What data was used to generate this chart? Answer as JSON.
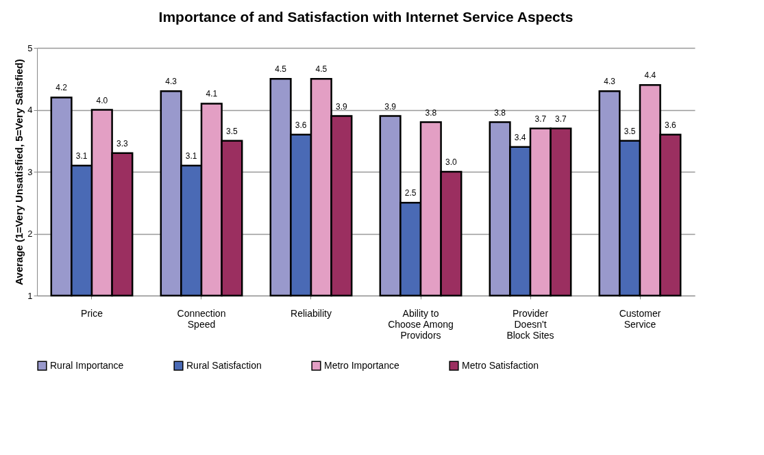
{
  "chart_data": {
    "type": "bar",
    "title": "Importance of and Satisfaction with Internet Service Aspects",
    "ylabel": "Average (1=Very Unsatisfied, 5=Very Satisfied)",
    "categories": [
      "Price",
      "Connection Speed",
      "Reliability",
      "Ability to Choose Among Providors",
      "Provider Doesn't Block Sites",
      "Customer Service"
    ],
    "series": [
      {
        "name": "Rural Importance",
        "color": "#9999cc",
        "values": [
          4.2,
          4.3,
          4.5,
          3.9,
          3.8,
          4.3
        ],
        "value_labels": [
          "4.2",
          "4.3",
          "4.5",
          "3.9",
          "3.8",
          "4.3"
        ]
      },
      {
        "name": "Rural Satisfaction",
        "color": "#4a6ab5",
        "values": [
          3.1,
          3.1,
          3.6,
          2.5,
          3.4,
          3.5
        ],
        "value_labels": [
          "3.1",
          "3.1",
          "3.6",
          "2.5",
          "3.4",
          "3.5"
        ]
      },
      {
        "name": "Metro Importance",
        "color": "#e39fc4",
        "values": [
          4.0,
          4.1,
          4.5,
          3.8,
          3.7,
          4.4
        ],
        "value_labels": [
          "4.0",
          "4.1",
          "4.5",
          "3.8",
          "3.7",
          "4.4"
        ]
      },
      {
        "name": "Metro Satisfaction",
        "color": "#9b2f60",
        "values": [
          3.3,
          3.5,
          3.9,
          3.0,
          3.7,
          3.6
        ],
        "value_labels": [
          "3.3",
          "3.5",
          "3.9",
          "3.0",
          "3.7",
          "3.6"
        ]
      }
    ],
    "ylim": [
      1,
      5
    ],
    "yticks": [
      1,
      2,
      3,
      4,
      5
    ],
    "grid": "y",
    "legend": "bottom"
  }
}
